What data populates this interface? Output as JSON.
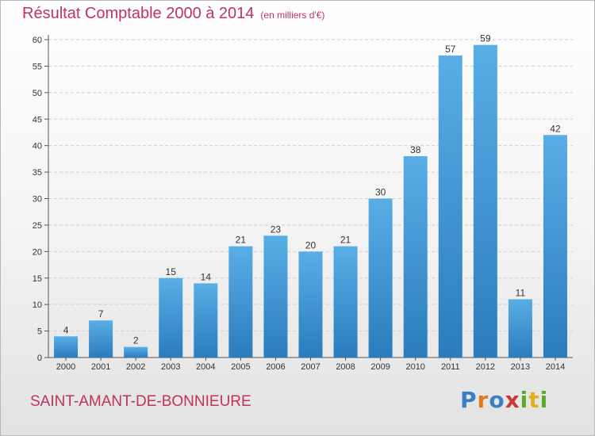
{
  "title": "Résultat Comptable 2000 à 2014",
  "subtitle": "(en milliers d'€)",
  "place": "SAINT-AMANT-DE-BONNIEURE",
  "logo": {
    "letters": [
      "P",
      "r",
      "o",
      "x",
      "i",
      "t",
      "i"
    ],
    "colors": [
      "#3a7fc4",
      "#e07b1c",
      "#3a7fc4",
      "#c63a3a",
      "#5aaa2c",
      "#e0b020",
      "#5aaa2c"
    ]
  },
  "colors": {
    "bar_top": "#5aaee6",
    "bar_bottom": "#2a7cbc",
    "text_accent": "#c0335a"
  },
  "chart_data": {
    "type": "bar",
    "categories": [
      "2000",
      "2001",
      "2002",
      "2003",
      "2004",
      "2005",
      "2006",
      "2007",
      "2008",
      "2009",
      "2010",
      "2011",
      "2012",
      "2013",
      "2014"
    ],
    "values": [
      4,
      7,
      2,
      15,
      14,
      21,
      23,
      20,
      21,
      30,
      38,
      57,
      59,
      11,
      42
    ],
    "ylim": [
      0,
      60
    ],
    "yticks": [
      0,
      5,
      10,
      15,
      20,
      25,
      30,
      35,
      40,
      45,
      50,
      55,
      60
    ],
    "grid": true,
    "data_labels": true
  }
}
